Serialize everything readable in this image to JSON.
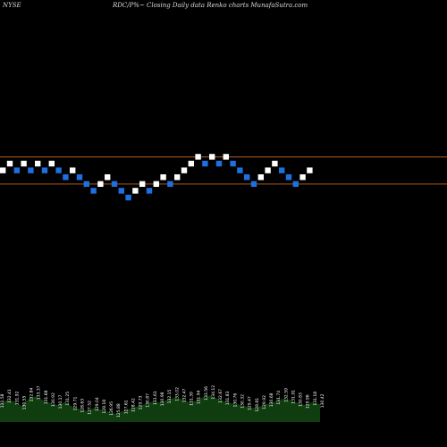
{
  "header": {
    "exchange": "NYSE",
    "description": "RDC/P%~  Closing Daily data  Renko  charts MunafaSutra.com"
  },
  "colors": {
    "background": "#000000",
    "up_brick": "#ffffff",
    "down_brick": "#1e6fe0",
    "upper_line": "#b35b1a",
    "lower_line": "#b35b1a",
    "volume": "#0f3d0f",
    "volume_label": "#ffffff"
  },
  "chart_data": {
    "type": "renko",
    "reference_lines": [
      {
        "name": "upper",
        "level": 8
      },
      {
        "name": "lower",
        "level": 4
      }
    ],
    "bricks": [
      {
        "level": 6,
        "dir": "up"
      },
      {
        "level": 7,
        "dir": "up"
      },
      {
        "level": 6,
        "dir": "down"
      },
      {
        "level": 7,
        "dir": "up"
      },
      {
        "level": 6,
        "dir": "down"
      },
      {
        "level": 7,
        "dir": "up"
      },
      {
        "level": 6,
        "dir": "down"
      },
      {
        "level": 7,
        "dir": "up"
      },
      {
        "level": 6,
        "dir": "down"
      },
      {
        "level": 5,
        "dir": "down"
      },
      {
        "level": 6,
        "dir": "up"
      },
      {
        "level": 5,
        "dir": "down"
      },
      {
        "level": 4,
        "dir": "down"
      },
      {
        "level": 3,
        "dir": "down"
      },
      {
        "level": 4,
        "dir": "up"
      },
      {
        "level": 5,
        "dir": "up"
      },
      {
        "level": 4,
        "dir": "down"
      },
      {
        "level": 3,
        "dir": "down"
      },
      {
        "level": 2,
        "dir": "down"
      },
      {
        "level": 3,
        "dir": "up"
      },
      {
        "level": 4,
        "dir": "up"
      },
      {
        "level": 3,
        "dir": "down"
      },
      {
        "level": 4,
        "dir": "up"
      },
      {
        "level": 5,
        "dir": "up"
      },
      {
        "level": 4,
        "dir": "down"
      },
      {
        "level": 5,
        "dir": "up"
      },
      {
        "level": 6,
        "dir": "up"
      },
      {
        "level": 7,
        "dir": "up"
      },
      {
        "level": 8,
        "dir": "up"
      },
      {
        "level": 7,
        "dir": "down"
      },
      {
        "level": 8,
        "dir": "up"
      },
      {
        "level": 7,
        "dir": "down"
      },
      {
        "level": 8,
        "dir": "up"
      },
      {
        "level": 7,
        "dir": "down"
      },
      {
        "level": 6,
        "dir": "down"
      },
      {
        "level": 5,
        "dir": "down"
      },
      {
        "level": 4,
        "dir": "down"
      },
      {
        "level": 5,
        "dir": "up"
      },
      {
        "level": 6,
        "dir": "up"
      },
      {
        "level": 7,
        "dir": "up"
      },
      {
        "level": 6,
        "dir": "down"
      },
      {
        "level": 5,
        "dir": "down"
      },
      {
        "level": 4,
        "dir": "down"
      },
      {
        "level": 5,
        "dir": "up"
      },
      {
        "level": 6,
        "dir": "up"
      }
    ],
    "volume": {
      "values": [
        0.62,
        0.78,
        0.71,
        0.55,
        0.83,
        0.9,
        0.74,
        0.66,
        0.58,
        0.7,
        0.52,
        0.45,
        0.38,
        0.5,
        0.42,
        0.35,
        0.28,
        0.4,
        0.47,
        0.55,
        0.63,
        0.72,
        0.68,
        0.77,
        0.85,
        0.8,
        0.69,
        0.74,
        0.88,
        0.92,
        0.79,
        0.71,
        0.64,
        0.6,
        0.53,
        0.48,
        0.57,
        0.65,
        0.73,
        0.82,
        0.76,
        0.66,
        0.59,
        0.7,
        0.62
      ],
      "labels": [
        "131.58",
        "132.41",
        "131.92",
        "130.55",
        "132.84",
        "133.37",
        "131.68",
        "130.92",
        "130.17",
        "131.25",
        "129.71",
        "128.63",
        "127.52",
        "129.04",
        "128.18",
        "126.95",
        "125.88",
        "127.61",
        "128.42",
        "129.73",
        "130.87",
        "131.61",
        "130.98",
        "132.15",
        "133.02",
        "132.47",
        "131.39",
        "131.94",
        "133.56",
        "134.12",
        "132.67",
        "131.83",
        "130.76",
        "130.32",
        "129.47",
        "128.81",
        "129.92",
        "130.68",
        "131.74",
        "132.59",
        "131.91",
        "130.83",
        "129.96",
        "131.18",
        "130.42"
      ]
    }
  }
}
